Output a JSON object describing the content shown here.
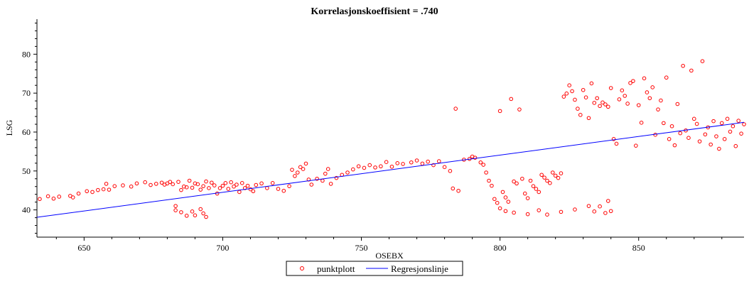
{
  "chart_data": {
    "type": "scatter",
    "title": "Korrelasjonskoeffisient = .740",
    "xlabel": "OSEBX",
    "ylabel": "LSG",
    "xlim": [
      633,
      888
    ],
    "ylim": [
      33,
      89
    ],
    "x_ticks": [
      650,
      700,
      750,
      800,
      850
    ],
    "y_ticks": [
      40,
      50,
      60,
      70,
      80
    ],
    "x_tick_labels": [
      "650",
      "700",
      "750",
      "800",
      "850"
    ],
    "y_tick_labels": [
      "40",
      "50",
      "60",
      "70",
      "80"
    ],
    "grid": false,
    "legend_position": "bottom-center",
    "colors": {
      "scatter": "#ff0000",
      "line": "#0000ff"
    },
    "legend": {
      "scatter_label": "punktplott",
      "line_label": "Regresjonslinje"
    },
    "series": [
      {
        "name": "punktplott",
        "kind": "scatter",
        "points": [
          [
            634,
            42.8
          ],
          [
            637,
            43.5
          ],
          [
            639,
            42.9
          ],
          [
            641,
            43.4
          ],
          [
            645,
            43.6
          ],
          [
            646,
            43.2
          ],
          [
            648,
            44.2
          ],
          [
            651,
            44.8
          ],
          [
            653,
            44.6
          ],
          [
            655,
            45.1
          ],
          [
            657,
            45.3
          ],
          [
            658,
            46.7
          ],
          [
            659,
            45.2
          ],
          [
            661,
            46.1
          ],
          [
            664,
            46.3
          ],
          [
            667,
            46.0
          ],
          [
            669,
            46.8
          ],
          [
            672,
            47.1
          ],
          [
            674,
            46.4
          ],
          [
            676,
            46.7
          ],
          [
            678,
            47.0
          ],
          [
            679,
            46.5
          ],
          [
            680,
            46.8
          ],
          [
            681,
            47.2
          ],
          [
            682,
            46.6
          ],
          [
            683,
            41.0
          ],
          [
            684,
            47.2
          ],
          [
            685,
            45.1
          ],
          [
            686,
            46.0
          ],
          [
            687,
            45.8
          ],
          [
            688,
            47.5
          ],
          [
            689,
            45.7
          ],
          [
            690,
            46.8
          ],
          [
            691,
            46.6
          ],
          [
            692,
            45.2
          ],
          [
            693,
            46.1
          ],
          [
            694,
            47.3
          ],
          [
            695,
            45.6
          ],
          [
            696,
            47.0
          ],
          [
            697,
            46.3
          ],
          [
            698,
            44.2
          ],
          [
            699,
            45.6
          ],
          [
            700,
            46.2
          ],
          [
            701,
            46.9
          ],
          [
            702,
            45.4
          ],
          [
            703,
            47.1
          ],
          [
            704,
            46.0
          ],
          [
            705,
            46.5
          ],
          [
            706,
            44.6
          ],
          [
            707,
            46.9
          ],
          [
            708,
            45.6
          ],
          [
            709,
            46.2
          ],
          [
            710,
            45.3
          ],
          [
            711,
            44.8
          ],
          [
            712,
            46.4
          ],
          [
            714,
            46.8
          ],
          [
            716,
            45.6
          ],
          [
            718,
            46.9
          ],
          [
            720,
            45.4
          ],
          [
            722,
            44.9
          ],
          [
            724,
            46.1
          ],
          [
            725,
            50.3
          ],
          [
            726,
            48.7
          ],
          [
            727,
            49.6
          ],
          [
            728,
            51.0
          ],
          [
            729,
            50.5
          ],
          [
            730,
            51.9
          ],
          [
            731,
            47.8
          ],
          [
            732,
            46.5
          ],
          [
            734,
            48.0
          ],
          [
            736,
            47.5
          ],
          [
            737,
            49.3
          ],
          [
            738,
            50.5
          ],
          [
            739,
            46.7
          ],
          [
            741,
            48.2
          ],
          [
            743,
            49.0
          ],
          [
            745,
            49.6
          ],
          [
            747,
            50.4
          ],
          [
            749,
            51.2
          ],
          [
            751,
            50.8
          ],
          [
            753,
            51.5
          ],
          [
            755,
            50.9
          ],
          [
            757,
            51.2
          ],
          [
            759,
            52.3
          ],
          [
            761,
            51.1
          ],
          [
            763,
            52.0
          ],
          [
            765,
            51.8
          ],
          [
            768,
            52.2
          ],
          [
            770,
            52.7
          ],
          [
            772,
            51.9
          ],
          [
            774,
            52.4
          ],
          [
            776,
            51.5
          ],
          [
            778,
            52.5
          ],
          [
            780,
            51.0
          ],
          [
            782,
            50.0
          ],
          [
            783,
            45.5
          ],
          [
            784,
            66.0
          ],
          [
            785,
            44.9
          ],
          [
            787,
            52.9
          ],
          [
            789,
            53.1
          ],
          [
            790,
            53.7
          ],
          [
            791,
            53.4
          ],
          [
            793,
            52.2
          ],
          [
            794,
            51.6
          ],
          [
            795,
            49.6
          ],
          [
            796,
            47.5
          ],
          [
            797,
            46.2
          ],
          [
            798,
            42.8
          ],
          [
            799,
            41.8
          ],
          [
            800,
            65.4
          ],
          [
            801,
            44.6
          ],
          [
            802,
            43.2
          ],
          [
            803,
            42.1
          ],
          [
            804,
            68.5
          ],
          [
            805,
            47.3
          ],
          [
            806,
            46.8
          ],
          [
            807,
            65.8
          ],
          [
            808,
            48.0
          ],
          [
            809,
            44.2
          ],
          [
            810,
            43.0
          ],
          [
            811,
            47.5
          ],
          [
            812,
            46.1
          ],
          [
            813,
            45.4
          ],
          [
            814,
            44.6
          ],
          [
            815,
            49.0
          ],
          [
            816,
            48.3
          ],
          [
            817,
            47.5
          ],
          [
            818,
            46.9
          ],
          [
            819,
            49.6
          ],
          [
            820,
            48.8
          ],
          [
            821,
            48.2
          ],
          [
            822,
            49.4
          ],
          [
            823,
            69.1
          ],
          [
            824,
            69.9
          ],
          [
            825,
            72.0
          ],
          [
            826,
            70.5
          ],
          [
            827,
            68.3
          ],
          [
            828,
            66.0
          ],
          [
            829,
            64.4
          ],
          [
            830,
            70.8
          ],
          [
            831,
            68.9
          ],
          [
            832,
            63.6
          ],
          [
            833,
            72.5
          ],
          [
            834,
            67.5
          ],
          [
            835,
            68.7
          ],
          [
            836,
            66.7
          ],
          [
            837,
            67.6
          ],
          [
            838,
            67.1
          ],
          [
            839,
            66.5
          ],
          [
            840,
            71.3
          ],
          [
            841,
            58.2
          ],
          [
            842,
            57.0
          ],
          [
            843,
            68.4
          ],
          [
            844,
            70.7
          ],
          [
            845,
            69.3
          ],
          [
            846,
            67.3
          ],
          [
            847,
            72.6
          ],
          [
            848,
            73.1
          ],
          [
            849,
            56.5
          ],
          [
            850,
            66.9
          ],
          [
            851,
            62.4
          ],
          [
            852,
            73.8
          ],
          [
            853,
            70.2
          ],
          [
            854,
            68.7
          ],
          [
            855,
            71.5
          ],
          [
            856,
            59.3
          ],
          [
            857,
            65.8
          ],
          [
            858,
            68.1
          ],
          [
            859,
            62.3
          ],
          [
            860,
            74.0
          ],
          [
            861,
            58.2
          ],
          [
            862,
            61.5
          ],
          [
            863,
            56.6
          ],
          [
            864,
            67.2
          ],
          [
            865,
            59.7
          ],
          [
            866,
            77.0
          ],
          [
            867,
            60.4
          ],
          [
            868,
            58.5
          ],
          [
            869,
            75.8
          ],
          [
            870,
            63.4
          ],
          [
            871,
            62.1
          ],
          [
            872,
            57.6
          ],
          [
            873,
            78.2
          ],
          [
            874,
            59.4
          ],
          [
            875,
            61.2
          ],
          [
            876,
            56.8
          ],
          [
            877,
            62.8
          ],
          [
            878,
            58.9
          ],
          [
            879,
            55.7
          ],
          [
            880,
            62.3
          ],
          [
            881,
            58.2
          ],
          [
            882,
            63.4
          ],
          [
            883,
            60.1
          ],
          [
            884,
            61.5
          ],
          [
            885,
            56.4
          ],
          [
            886,
            62.9
          ],
          [
            887,
            59.6
          ],
          [
            888,
            62.0
          ],
          [
            689,
            39.6
          ],
          [
            690,
            38.6
          ],
          [
            692,
            40.2
          ],
          [
            693,
            39.1
          ],
          [
            694,
            38.2
          ],
          [
            685,
            39.4
          ],
          [
            683,
            39.9
          ],
          [
            687,
            38.5
          ],
          [
            800,
            40.4
          ],
          [
            802,
            39.7
          ],
          [
            805,
            39.3
          ],
          [
            810,
            38.9
          ],
          [
            814,
            39.9
          ],
          [
            817,
            38.8
          ],
          [
            822,
            39.5
          ],
          [
            827,
            40.1
          ],
          [
            832,
            41.0
          ],
          [
            834,
            39.6
          ],
          [
            836,
            40.9
          ],
          [
            838,
            39.2
          ],
          [
            839,
            42.3
          ],
          [
            840,
            39.7
          ]
        ]
      },
      {
        "name": "Regresjonslinje",
        "kind": "line",
        "x": [
          633,
          888
        ],
        "y": [
          38.1,
          62.5
        ]
      }
    ]
  }
}
